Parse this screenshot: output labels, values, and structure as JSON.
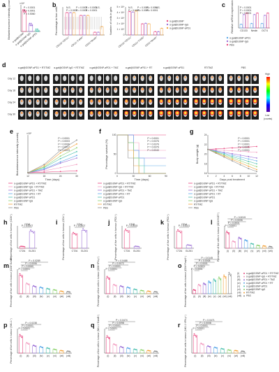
{
  "panels": {
    "a": {
      "letter": "a",
      "ylabel": "Bioluminescence intensity (counts)",
      "xlabels": [
        "α-gal@GSNP",
        "α-gal@GSNP-IgG",
        "α-gal@GSNP-aPD1"
      ],
      "pvals": [
        "P = 0.0001",
        "P = 0.0001",
        "P = 0.5060"
      ],
      "exp": "×10⁵"
    },
    "b": {
      "letter": "b",
      "ylabel": "Percentage in live cells",
      "xlabels": [
        "CD11b⁺CD11c⁺",
        "CD11c⁺F4/80⁺",
        "CD33⁺Nestin⁺"
      ],
      "pvals": [
        "N.S.",
        "P = 0.0001",
        "P = 0.0001",
        "N.S.",
        "P = 0.0001",
        "P = 0.0001",
        "P = 0.0001"
      ]
    },
    "b2": {
      "ylabel": "Number of cells in gels",
      "xlabels": [
        "CD11b⁺CD11c⁺",
        "CD11c⁺F4/80⁺",
        "CD33⁺Nestin⁺"
      ],
      "ticks": [
        "0",
        "1 × 10⁴",
        "2 × 10⁴",
        "3 × 10⁴",
        "4 × 10⁴",
        "5 × 10⁴"
      ],
      "legend": [
        "α-gal@GSNP",
        "α-gal@GSNP-IgG",
        "α-gal@GSNP-aPD1"
      ],
      "pvals": [
        "N.S.",
        "P = 0.0001",
        "P = 0.0001",
        "N.S.",
        "P = 0.0001",
        "P = 0.0001",
        "P = 0.0001"
      ]
    },
    "c": {
      "letter": "c",
      "ylabel": "Relative mRNA expression",
      "xlabels": [
        "CD133",
        "Nestin",
        "OCT4"
      ],
      "legend": [
        "α-gal@GSNP-aPD1",
        "α-gal@GSNP-IgG",
        "PBS"
      ],
      "pvals": [
        "P = 0.0001",
        "P = 0.0001",
        "P = 0.0001"
      ]
    },
    "d": {
      "letter": "d",
      "groups": [
        "α-gal@GSNP-aPD1 + RT/TMZ",
        "α-gal@GSNP-IgG + RT/TMZ",
        "α-gal@GSNP-aPD1 + TMZ",
        "α-gal@GSNP-aPD1 + RT",
        "α-gal@GSNP-aPD1",
        "RT/TMZ",
        "PBS"
      ],
      "rows": [
        "Day 12",
        "Day 18",
        "Day 24",
        "Day 30"
      ],
      "scale_high": "High",
      "scale_low": "Low",
      "scale_unit": "(counts)"
    },
    "e": {
      "letter": "e",
      "ylabel": "Bioluminescence intensity (counts)",
      "xlabel": "Time (days)",
      "xticks": [
        "12",
        "18",
        "24",
        "30"
      ],
      "exp": "×10⁵",
      "pvals": [
        "P < 0.0001",
        "P = 0.0003",
        "P = 0.0006",
        "P = 0.0017",
        "P = 0.0023"
      ]
    },
    "f": {
      "letter": "f",
      "ylabel": "Percentage survival (%)",
      "xlabel": "Time (days)",
      "xticks": [
        "0",
        "30",
        "60",
        "90"
      ],
      "yticks": [
        "0",
        "50",
        "100"
      ],
      "pvals": [
        "P < 0.0001",
        "P = 0.0376",
        "P = 0.0376",
        "P = 0.0376",
        "P = 0.0040"
      ]
    },
    "g": {
      "letter": "g",
      "ylabel": "Body weight (g)",
      "xlabel": "Days post treatment",
      "xticks": [
        "0",
        "2",
        "4",
        "6",
        "8",
        "10",
        "12"
      ],
      "yticks": [
        "16",
        "18",
        "20",
        "22",
        "24"
      ],
      "pvals": [
        "P = 0.0001",
        "P = 0.0001",
        "P = 0.0001",
        "P = 0.0001",
        "P = 0.0001"
      ]
    },
    "legend": [
      "α-gal@GSNP-aPD1 + RT/TMZ",
      "α-gal@GSNP-IgG + RT/TMZ",
      "α-gal@GSNP-aPD1 + TMZ",
      "α-gal@GSNP-aPD1 + RT",
      "α-gal@GSNP-aPD1",
      "α-gal@GSNP-IgG",
      "RT/TMZ",
      "PBS"
    ],
    "h": {
      "letter": "h",
      "title": "CD8",
      "ylabel": "Percentage of live cells in tumour (CD8⁺)",
      "xlabels": [
        "CT2A",
        "GL261"
      ],
      "pvals": [
        "P = 0.0007"
      ]
    },
    "i": {
      "letter": "i",
      "title": "CD4",
      "ylabel": "Percentage of live cells in tumour (CD4⁺)",
      "xlabels": [
        "CT2A",
        "GL261"
      ],
      "pvals": [
        "P = 0.0007"
      ]
    },
    "j": {
      "letter": "j",
      "title": "CD8",
      "ylabel": "Percentage of live cells in tumour (PD1⁺)",
      "xlabels": [
        "CT2A",
        "GL261"
      ],
      "pvals": [
        "P = 0.0003"
      ]
    },
    "k": {
      "letter": "k",
      "title": "CD4",
      "ylabel": "Percentage of live cells in tumour (PD1⁺)",
      "xlabels": [
        "CT2A",
        "GL261"
      ],
      "pvals": [
        "P = 0.0021"
      ]
    },
    "l": {
      "letter": "l",
      "ylabel": "Percentage of live cells in tumour (CD4⁺Ki67⁺)",
      "xlabels": [
        "(i)",
        "(ii)",
        "(iii)",
        "(iv)",
        "(v)",
        "(vi)",
        "(vii)",
        "(viii)"
      ],
      "pvals": [
        "P < 0.0001",
        "P = 0.0001",
        "P = 0.0006",
        "P = 0.0019"
      ]
    },
    "m": {
      "letter": "m",
      "ylabel": "Percentage of live cells in tumour (CD8⁺GzmB⁺)",
      "xlabels": [
        "(i)",
        "(ii)",
        "(iii)",
        "(iv)",
        "(v)",
        "(vi)",
        "(vii)",
        "(viii)"
      ],
      "pvals": [
        "P = 0.0001",
        "P = 0.0060",
        "P = 0.0006",
        "P = 0.0289"
      ]
    },
    "n": {
      "letter": "n",
      "ylabel": "Percentage of live cells in tumour (CD8⁺IFN-γ⁺)",
      "xlabels": [
        "(i)",
        "(ii)",
        "(iii)",
        "(iv)",
        "(v)",
        "(vi)",
        "(vii)",
        "(viii)"
      ],
      "pvals": [
        "P < 0.0001",
        "P = 0.0001",
        "P = 0.0072",
        "P = 0.0488"
      ]
    },
    "o": {
      "letter": "o",
      "ylabel": "Percentage of live cells in tumour (CD4⁺Foxp3⁺)",
      "xlabels": [
        "(i)",
        "(ii)",
        "(iii)",
        "(iv)",
        "(v)",
        "(vi)",
        "(vii)",
        "(viii)"
      ],
      "pvals": [
        "P = 0.0001",
        "P = 0.0001",
        "P = 0.0001",
        "P = 0.0008",
        "P = 0.0145"
      ]
    },
    "p": {
      "letter": "p",
      "ylabel": "Percentage of live cells in tumour (NK1.1⁺)",
      "xlabels": [
        "(i)",
        "(ii)",
        "(iii)",
        "(iv)",
        "(v)",
        "(vi)",
        "(vii)",
        "(viii)"
      ],
      "pvals": [
        "P < 0.0001",
        "P = 0.0001",
        "P = 0.0238"
      ]
    },
    "q": {
      "letter": "q",
      "ylabel": "Percentage of live cells in tumour (NK1.1⁺GzmB⁺)",
      "xlabels": [
        "(i)",
        "(ii)",
        "(iii)",
        "(iv)",
        "(v)",
        "(vi)",
        "(vii)",
        "(viii)"
      ],
      "pvals": [
        "P < 0.0001",
        "P = 0.0001",
        "P = 0.0098",
        "P = 0.0474"
      ]
    },
    "r": {
      "letter": "r",
      "ylabel": "Percentage of live cells in tumour (NK1.1⁺IFN-γ⁺)",
      "xlabels": [
        "(i)",
        "(ii)",
        "(iii)",
        "(iv)",
        "(v)",
        "(vi)",
        "(vii)",
        "(viii)"
      ],
      "pvals": [
        "P < 0.0001",
        "P = 0.0001",
        "P = 0.0008",
        "P = 0.0471"
      ]
    },
    "o_legend": [
      "(i)",
      "(ii)",
      "(iii)",
      "(iv)",
      "(v)",
      "(vi)",
      "(vii)",
      "(viii)",
      "α-gal@GSNP-aPD1 + RT/TMZ",
      "α-gal@GSNP-IgG + RT/TMZ",
      "α-gal@GSNP-aPD1 + TMZ",
      "α-gal@GSNP-aPD1 + RT",
      "α-gal@GSNP-aPD1",
      "α-gal@GSNP-IgG",
      "RT/TMZ",
      "PBS"
    ]
  },
  "colors": {
    "c1": "#e8457e",
    "c2": "#f29bbf",
    "c3": "#9b6fd6",
    "c4": "#5aa7e8",
    "c5": "#4fc2b0",
    "c6": "#8bd16a",
    "c7": "#f3a33c",
    "c8": "#8c8c8c"
  },
  "chart_data": [
    {
      "type": "bar",
      "panel": "a",
      "categories": [
        "α-gal@GSNP",
        "α-gal@GSNP-IgG",
        "α-gal@GSNP-aPD1"
      ],
      "values": [
        6.2,
        2.1,
        0.4
      ],
      "ylim": [
        0,
        8
      ]
    },
    {
      "type": "bar",
      "panel": "b",
      "categories": [
        "CD11b⁺CD11c⁺",
        "CD11c⁺F4/80⁺",
        "CD33⁺Nestin⁺"
      ],
      "series": [
        {
          "name": "α-gal@GSNP",
          "values": [
            8,
            7,
            1
          ]
        },
        {
          "name": "α-gal@GSNP-IgG",
          "values": [
            8,
            7,
            1
          ]
        },
        {
          "name": "α-gal@GSNP-aPD1",
          "values": [
            8,
            7,
            3
          ]
        }
      ],
      "ylim": [
        0,
        10
      ]
    },
    {
      "type": "bar",
      "panel": "b2",
      "categories": [
        "CD11b⁺CD11c⁺",
        "CD11c⁺F4/80⁺",
        "CD33⁺Nestin⁺"
      ],
      "series": [
        {
          "name": "α-gal@GSNP",
          "values": [
            4.2,
            2.0,
            0.6
          ]
        },
        {
          "name": "α-gal@GSNP-IgG",
          "values": [
            4.1,
            2.1,
            0.6
          ]
        },
        {
          "name": "α-gal@GSNP-aPD1",
          "values": [
            4.3,
            2.0,
            1.2
          ]
        }
      ],
      "ylim": [
        0,
        5
      ]
    },
    {
      "type": "bar",
      "panel": "c",
      "categories": [
        "CD133",
        "Nestin",
        "OCT4"
      ],
      "series": [
        {
          "name": "α-gal@GSNP-aPD1",
          "values": [
            0.25,
            0.3,
            0.3
          ]
        },
        {
          "name": "α-gal@GSNP-IgG",
          "values": [
            0.9,
            0.9,
            0.85
          ]
        },
        {
          "name": "PBS",
          "values": [
            1,
            1,
            1
          ]
        }
      ],
      "ylim": [
        0,
        1.5
      ]
    },
    {
      "type": "line",
      "panel": "e",
      "x": [
        12,
        18,
        24,
        30
      ],
      "series": [
        {
          "values": [
            0.1,
            0.2,
            0.3,
            0.4
          ]
        },
        {
          "values": [
            0.1,
            0.4,
            0.9,
            1.4
          ]
        },
        {
          "values": [
            0.1,
            0.6,
            1.6,
            2.4
          ]
        },
        {
          "values": [
            0.1,
            0.7,
            1.8,
            2.8
          ]
        },
        {
          "values": [
            0.1,
            0.9,
            2.3,
            3.4
          ]
        },
        {
          "values": [
            0.1,
            1.0,
            2.7,
            4.0
          ]
        },
        {
          "values": [
            0.1,
            1.2,
            3.2,
            4.6
          ]
        },
        {
          "values": [
            0.1,
            1.4,
            3.6,
            5.2
          ]
        }
      ],
      "ylim": [
        0,
        6
      ]
    },
    {
      "type": "line",
      "panel": "f",
      "x": [
        0,
        20,
        30,
        40,
        50,
        60,
        70,
        90
      ],
      "series": [
        {
          "values": [
            100,
            100,
            100,
            100,
            100,
            100,
            100,
            100
          ]
        },
        {
          "values": [
            100,
            100,
            80,
            60,
            60,
            60,
            60,
            60
          ]
        },
        {
          "values": [
            100,
            100,
            60,
            40,
            40,
            40,
            40,
            40
          ]
        },
        {
          "values": [
            100,
            100,
            60,
            40,
            20,
            20,
            20,
            20
          ]
        },
        {
          "values": [
            100,
            80,
            40,
            20,
            0,
            0,
            0,
            0
          ]
        },
        {
          "values": [
            100,
            80,
            40,
            0,
            0,
            0,
            0,
            0
          ]
        },
        {
          "values": [
            100,
            60,
            20,
            0,
            0,
            0,
            0,
            0
          ]
        },
        {
          "values": [
            100,
            40,
            0,
            0,
            0,
            0,
            0,
            0
          ]
        }
      ],
      "ylim": [
        0,
        100
      ]
    },
    {
      "type": "line",
      "panel": "g",
      "x": [
        0,
        2,
        4,
        6,
        8,
        10,
        12
      ],
      "series": [
        {
          "values": [
            21,
            21.1,
            21.2,
            21.3,
            21.4,
            21.5,
            21.6
          ]
        },
        {
          "values": [
            21,
            20.9,
            20.8,
            20.7,
            20.6,
            20.5,
            20.4
          ]
        },
        {
          "values": [
            21,
            20.7,
            20.4,
            20.1,
            19.8,
            19.5,
            19.2
          ]
        },
        {
          "values": [
            21,
            20.6,
            20.2,
            19.8,
            19.4,
            19.0,
            18.6
          ]
        },
        {
          "values": [
            21,
            20.5,
            20.0,
            19.5,
            19.0,
            18.5,
            18.0
          ]
        },
        {
          "values": [
            21,
            20.4,
            19.8,
            19.2,
            18.6,
            18.0,
            17.4
          ]
        },
        {
          "values": [
            21,
            20.3,
            19.6,
            18.9,
            18.2,
            17.5,
            16.8
          ]
        },
        {
          "values": [
            21,
            20.2,
            19.4,
            18.6,
            17.8,
            17.0,
            16.4
          ]
        }
      ],
      "ylim": [
        16,
        24
      ]
    },
    {
      "type": "bar",
      "panel": "h",
      "categories": [
        "CT2A",
        "GL261"
      ],
      "values": [
        0.1,
        0.9
      ],
      "ylim": [
        0,
        1.2
      ]
    },
    {
      "type": "bar",
      "panel": "i",
      "categories": [
        "CT2A",
        "GL261"
      ],
      "values": [
        2.6,
        3.2
      ],
      "ylim": [
        0,
        4
      ]
    },
    {
      "type": "bar",
      "panel": "j",
      "categories": [
        "CT2A",
        "GL261"
      ],
      "values": [
        5.5,
        0.6
      ],
      "ylim": [
        0,
        7
      ]
    },
    {
      "type": "bar",
      "panel": "k",
      "categories": [
        "CT2A",
        "GL261"
      ],
      "values": [
        3.8,
        0.7
      ],
      "ylim": [
        0,
        5
      ]
    },
    {
      "type": "bar",
      "panel": "l",
      "categories": [
        "(i)",
        "(ii)",
        "(iii)",
        "(iv)",
        "(v)",
        "(vi)",
        "(vii)",
        "(viii)"
      ],
      "values": [
        2.8,
        1.2,
        1.8,
        1.4,
        0.8,
        0.5,
        0.4,
        0.3
      ],
      "ylim": [
        0,
        4
      ]
    },
    {
      "type": "bar",
      "panel": "m",
      "categories": [
        "(i)",
        "(ii)",
        "(iii)",
        "(iv)",
        "(v)",
        "(vi)",
        "(vii)",
        "(viii)"
      ],
      "values": [
        3.0,
        1.6,
        1.2,
        1.0,
        0.8,
        0.6,
        0.4,
        0.3
      ],
      "ylim": [
        0,
        4
      ]
    },
    {
      "type": "bar",
      "panel": "n",
      "categories": [
        "(i)",
        "(ii)",
        "(iii)",
        "(iv)",
        "(v)",
        "(vi)",
        "(vii)",
        "(viii)"
      ],
      "values": [
        2.6,
        1.4,
        1.2,
        1.0,
        0.7,
        0.5,
        0.4,
        0.3
      ],
      "ylim": [
        0,
        4
      ]
    },
    {
      "type": "bar",
      "panel": "o",
      "categories": [
        "(i)",
        "(ii)",
        "(iii)",
        "(iv)",
        "(v)",
        "(vi)",
        "(vii)",
        "(viii)"
      ],
      "values": [
        0.6,
        1.4,
        1.6,
        1.9,
        2.2,
        2.5,
        2.8,
        3.2
      ],
      "ylim": [
        0,
        4
      ]
    },
    {
      "type": "bar",
      "panel": "p",
      "categories": [
        "(i)",
        "(ii)",
        "(iii)",
        "(iv)",
        "(v)",
        "(vi)",
        "(vii)",
        "(viii)"
      ],
      "values": [
        2.8,
        1.6,
        1.2,
        1.0,
        0.8,
        0.6,
        0.4,
        0.3
      ],
      "ylim": [
        0,
        4
      ]
    },
    {
      "type": "bar",
      "panel": "q",
      "categories": [
        "(i)",
        "(ii)",
        "(iii)",
        "(iv)",
        "(v)",
        "(vi)",
        "(vii)",
        "(viii)"
      ],
      "values": [
        2.6,
        1.4,
        1.0,
        0.8,
        0.6,
        0.5,
        0.4,
        0.3
      ],
      "ylim": [
        0,
        4
      ]
    },
    {
      "type": "bar",
      "panel": "r",
      "categories": [
        "(i)",
        "(ii)",
        "(iii)",
        "(iv)",
        "(v)",
        "(vi)",
        "(vii)",
        "(viii)"
      ],
      "values": [
        2.9,
        1.5,
        1.1,
        0.9,
        0.7,
        0.5,
        0.4,
        0.3
      ],
      "ylim": [
        0,
        4
      ]
    }
  ]
}
